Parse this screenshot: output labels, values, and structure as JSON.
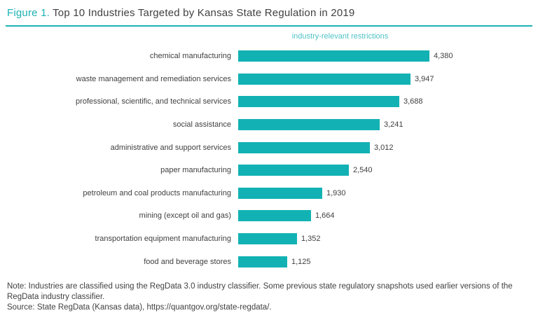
{
  "title": {
    "figure_label": "Figure 1.",
    "text": " Top 10 Industries Targeted by Kansas State Regulation in 2019"
  },
  "chart_data": {
    "type": "bar",
    "orientation": "horizontal",
    "title": "Figure 1. Top 10 Industries Targeted by Kansas State Regulation in 2019",
    "axis_top_label": "industry-relevant restrictions",
    "categories": [
      "chemical manufacturing",
      "waste management and remediation services",
      "professional, scientific, and technical services",
      "social assistance",
      "administrative and support services",
      "paper manufacturing",
      "petroleum and coal products manufacturing",
      "mining (except oil and gas)",
      "transportation equipment manufacturing",
      "food and beverage stores"
    ],
    "values": [
      4380,
      3947,
      3688,
      3241,
      3012,
      2540,
      1930,
      1664,
      1352,
      1125
    ],
    "value_labels": [
      "4,380",
      "3,947",
      "3,688",
      "3,241",
      "3,012",
      "2,540",
      "1,930",
      "1,664",
      "1,352",
      "1,125"
    ],
    "xlim": [
      0,
      4380
    ],
    "grid": false,
    "legend": false,
    "bar_color": "#12b2b4"
  },
  "footer": {
    "note": "Note: Industries are classified using the RegData 3.0 industry classifier. Some previous state regulatory snapshots used earlier versions of the RegData industry classifier.",
    "source": "Source: State RegData (Kansas data), https://quantgov.org/state-regdata/."
  },
  "colors": {
    "accent_teal": "#12b2b4",
    "text_dark": "#414042"
  }
}
